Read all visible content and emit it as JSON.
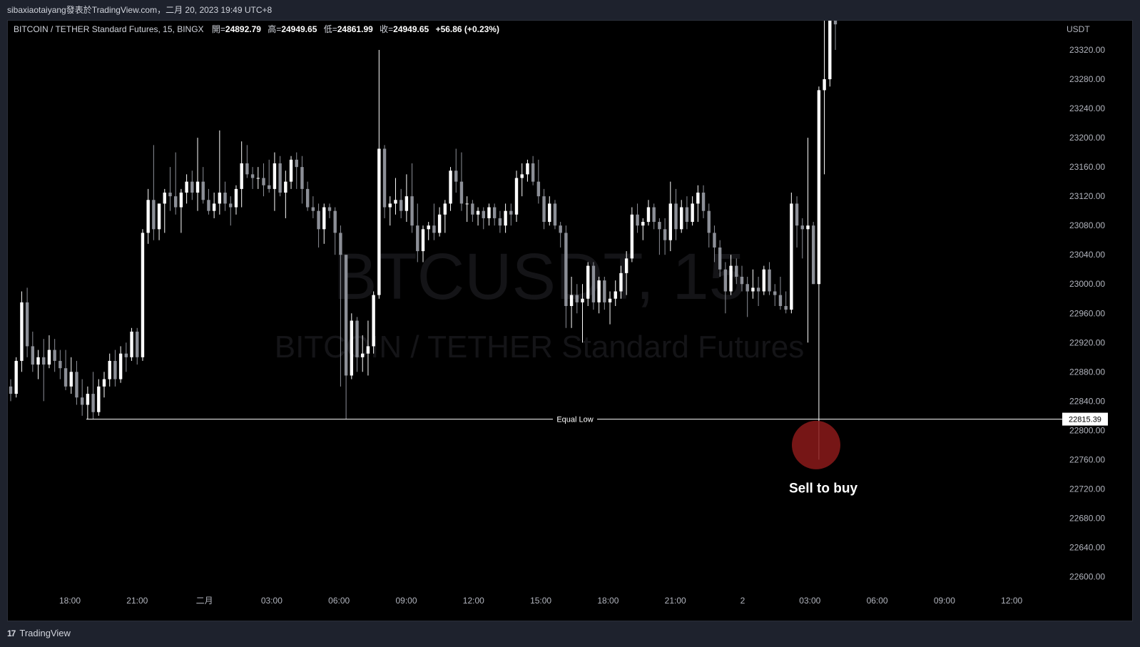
{
  "header": {
    "publish_line": "sibaxiaotaiyang發表於TradingView.com，二月 20, 2023 19:49 UTC+8"
  },
  "legend": {
    "symbol": "BITCOIN / TETHER Standard Futures, 15, BINGX",
    "open_label": "開=",
    "open": "24892.79",
    "high_label": "高=",
    "high": "24949.65",
    "low_label": "低=",
    "low": "24861.99",
    "close_label": "收=",
    "close": "24949.65",
    "change": "+56.86 (+0.23%)"
  },
  "watermark": {
    "ticker": "BTCUSDT, 15",
    "name": "BITCOIN / TETHER Standard Futures"
  },
  "footer": {
    "brand": "TradingView",
    "logo_icon": "tradingview-logo-icon"
  },
  "colors": {
    "bull": "#ffffff",
    "bear": "#8c8f97",
    "background": "#000000",
    "grid_text": "#b2b5be",
    "marker": "#8b1a1a"
  },
  "chart_data": {
    "type": "candlestick",
    "title": "BITCOIN / TETHER Standard Futures, 15, BINGX",
    "ylabel": "USDT",
    "ylim": [
      22580,
      23360
    ],
    "yticks": [
      23320,
      23280,
      23240,
      23200,
      23160,
      23120,
      23080,
      23040,
      23000,
      22960,
      22920,
      22880,
      22840,
      22800,
      22760,
      22720,
      22680,
      22640,
      22600
    ],
    "xtick_labels": [
      "18:00",
      "21:00",
      "二月",
      "03:00",
      "06:00",
      "09:00",
      "12:00",
      "15:00",
      "18:00",
      "21:00",
      "2",
      "03:00",
      "06:00",
      "09:00",
      "12:00"
    ],
    "candles": [
      {
        "o": 22860,
        "h": 22870,
        "l": 22840,
        "c": 22850
      },
      {
        "o": 22850,
        "h": 22900,
        "l": 22845,
        "c": 22895
      },
      {
        "o": 22895,
        "h": 22990,
        "l": 22880,
        "c": 22975
      },
      {
        "o": 22975,
        "h": 22995,
        "l": 22900,
        "c": 22915
      },
      {
        "o": 22915,
        "h": 22935,
        "l": 22880,
        "c": 22890
      },
      {
        "o": 22890,
        "h": 22910,
        "l": 22870,
        "c": 22900
      },
      {
        "o": 22900,
        "h": 22925,
        "l": 22840,
        "c": 22890
      },
      {
        "o": 22890,
        "h": 22930,
        "l": 22885,
        "c": 22910
      },
      {
        "o": 22910,
        "h": 22925,
        "l": 22880,
        "c": 22895
      },
      {
        "o": 22895,
        "h": 22910,
        "l": 22870,
        "c": 22885
      },
      {
        "o": 22885,
        "h": 22910,
        "l": 22855,
        "c": 22860
      },
      {
        "o": 22860,
        "h": 22900,
        "l": 22850,
        "c": 22880
      },
      {
        "o": 22880,
        "h": 22895,
        "l": 22835,
        "c": 22845
      },
      {
        "o": 22845,
        "h": 22870,
        "l": 22820,
        "c": 22835
      },
      {
        "o": 22835,
        "h": 22860,
        "l": 22815,
        "c": 22850
      },
      {
        "o": 22850,
        "h": 22880,
        "l": 22815,
        "c": 22825
      },
      {
        "o": 22825,
        "h": 22870,
        "l": 22820,
        "c": 22860
      },
      {
        "o": 22860,
        "h": 22880,
        "l": 22845,
        "c": 22870
      },
      {
        "o": 22870,
        "h": 22905,
        "l": 22860,
        "c": 22895
      },
      {
        "o": 22895,
        "h": 22910,
        "l": 22860,
        "c": 22870
      },
      {
        "o": 22870,
        "h": 22915,
        "l": 22865,
        "c": 22905
      },
      {
        "o": 22905,
        "h": 22920,
        "l": 22880,
        "c": 22900
      },
      {
        "o": 22900,
        "h": 22940,
        "l": 22895,
        "c": 22935
      },
      {
        "o": 22935,
        "h": 22940,
        "l": 22890,
        "c": 22900
      },
      {
        "o": 22900,
        "h": 23075,
        "l": 22895,
        "c": 23070
      },
      {
        "o": 23070,
        "h": 23130,
        "l": 23055,
        "c": 23115
      },
      {
        "o": 23115,
        "h": 23190,
        "l": 23060,
        "c": 23075
      },
      {
        "o": 23075,
        "h": 23110,
        "l": 23060,
        "c": 23110
      },
      {
        "o": 23110,
        "h": 23130,
        "l": 23070,
        "c": 23125
      },
      {
        "o": 23125,
        "h": 23160,
        "l": 23100,
        "c": 23120
      },
      {
        "o": 23120,
        "h": 23180,
        "l": 23095,
        "c": 23105
      },
      {
        "o": 23105,
        "h": 23130,
        "l": 23070,
        "c": 23125
      },
      {
        "o": 23125,
        "h": 23150,
        "l": 23110,
        "c": 23140
      },
      {
        "o": 23140,
        "h": 23155,
        "l": 23115,
        "c": 23125
      },
      {
        "o": 23125,
        "h": 23200,
        "l": 23100,
        "c": 23140
      },
      {
        "o": 23140,
        "h": 23160,
        "l": 23110,
        "c": 23115
      },
      {
        "o": 23115,
        "h": 23130,
        "l": 23095,
        "c": 23100
      },
      {
        "o": 23100,
        "h": 23125,
        "l": 23090,
        "c": 23110
      },
      {
        "o": 23110,
        "h": 23210,
        "l": 23095,
        "c": 23125
      },
      {
        "o": 23125,
        "h": 23140,
        "l": 23100,
        "c": 23110
      },
      {
        "o": 23110,
        "h": 23120,
        "l": 23080,
        "c": 23105
      },
      {
        "o": 23105,
        "h": 23135,
        "l": 23095,
        "c": 23130
      },
      {
        "o": 23130,
        "h": 23195,
        "l": 23105,
        "c": 23165
      },
      {
        "o": 23165,
        "h": 23190,
        "l": 23145,
        "c": 23150
      },
      {
        "o": 23150,
        "h": 23160,
        "l": 23130,
        "c": 23145
      },
      {
        "o": 23145,
        "h": 23160,
        "l": 23130,
        "c": 23145
      },
      {
        "o": 23145,
        "h": 23165,
        "l": 23120,
        "c": 23135
      },
      {
        "o": 23135,
        "h": 23170,
        "l": 23125,
        "c": 23130
      },
      {
        "o": 23130,
        "h": 23180,
        "l": 23100,
        "c": 23165
      },
      {
        "o": 23165,
        "h": 23175,
        "l": 23120,
        "c": 23125
      },
      {
        "o": 23125,
        "h": 23155,
        "l": 23090,
        "c": 23140
      },
      {
        "o": 23140,
        "h": 23175,
        "l": 23130,
        "c": 23170
      },
      {
        "o": 23170,
        "h": 23180,
        "l": 23130,
        "c": 23160
      },
      {
        "o": 23160,
        "h": 23175,
        "l": 23110,
        "c": 23130
      },
      {
        "o": 23130,
        "h": 23140,
        "l": 23100,
        "c": 23105
      },
      {
        "o": 23105,
        "h": 23120,
        "l": 23090,
        "c": 23100
      },
      {
        "o": 23100,
        "h": 23110,
        "l": 23050,
        "c": 23075
      },
      {
        "o": 23075,
        "h": 23110,
        "l": 23055,
        "c": 23105
      },
      {
        "o": 23105,
        "h": 23110,
        "l": 23090,
        "c": 23100
      },
      {
        "o": 23100,
        "h": 23105,
        "l": 23040,
        "c": 23070
      },
      {
        "o": 23070,
        "h": 23080,
        "l": 22860,
        "c": 23040
      },
      {
        "o": 23040,
        "h": 23040,
        "l": 22815,
        "c": 22875
      },
      {
        "o": 22875,
        "h": 22960,
        "l": 22870,
        "c": 22950
      },
      {
        "o": 22950,
        "h": 22955,
        "l": 22880,
        "c": 22900
      },
      {
        "o": 22900,
        "h": 22930,
        "l": 22880,
        "c": 22905
      },
      {
        "o": 22905,
        "h": 22950,
        "l": 22875,
        "c": 22915
      },
      {
        "o": 22915,
        "h": 22990,
        "l": 22905,
        "c": 22985
      },
      {
        "o": 22985,
        "h": 23320,
        "l": 22980,
        "c": 23185
      },
      {
        "o": 23185,
        "h": 23190,
        "l": 23090,
        "c": 23105
      },
      {
        "o": 23105,
        "h": 23120,
        "l": 23080,
        "c": 23110
      },
      {
        "o": 23110,
        "h": 23145,
        "l": 23095,
        "c": 23115
      },
      {
        "o": 23115,
        "h": 23130,
        "l": 23090,
        "c": 23100
      },
      {
        "o": 23100,
        "h": 23150,
        "l": 23085,
        "c": 23120
      },
      {
        "o": 23120,
        "h": 23165,
        "l": 23070,
        "c": 23080
      },
      {
        "o": 23080,
        "h": 23110,
        "l": 23030,
        "c": 23045
      },
      {
        "o": 23045,
        "h": 23080,
        "l": 23030,
        "c": 23075
      },
      {
        "o": 23075,
        "h": 23085,
        "l": 23060,
        "c": 23080
      },
      {
        "o": 23080,
        "h": 23110,
        "l": 23060,
        "c": 23070
      },
      {
        "o": 23070,
        "h": 23105,
        "l": 23065,
        "c": 23095
      },
      {
        "o": 23095,
        "h": 23115,
        "l": 23070,
        "c": 23110
      },
      {
        "o": 23110,
        "h": 23160,
        "l": 23100,
        "c": 23155
      },
      {
        "o": 23155,
        "h": 23185,
        "l": 23125,
        "c": 23140
      },
      {
        "o": 23140,
        "h": 23180,
        "l": 23100,
        "c": 23110
      },
      {
        "o": 23110,
        "h": 23120,
        "l": 23085,
        "c": 23110
      },
      {
        "o": 23110,
        "h": 23115,
        "l": 23085,
        "c": 23095
      },
      {
        "o": 23095,
        "h": 23105,
        "l": 23080,
        "c": 23100
      },
      {
        "o": 23100,
        "h": 23105,
        "l": 23075,
        "c": 23090
      },
      {
        "o": 23090,
        "h": 23110,
        "l": 23080,
        "c": 23105
      },
      {
        "o": 23105,
        "h": 23110,
        "l": 23080,
        "c": 23090
      },
      {
        "o": 23090,
        "h": 23100,
        "l": 23070,
        "c": 23080
      },
      {
        "o": 23080,
        "h": 23110,
        "l": 23070,
        "c": 23100
      },
      {
        "o": 23100,
        "h": 23110,
        "l": 23080,
        "c": 23095
      },
      {
        "o": 23095,
        "h": 23155,
        "l": 23085,
        "c": 23145
      },
      {
        "o": 23145,
        "h": 23165,
        "l": 23120,
        "c": 23150
      },
      {
        "o": 23150,
        "h": 23170,
        "l": 23140,
        "c": 23165
      },
      {
        "o": 23165,
        "h": 23175,
        "l": 23135,
        "c": 23140
      },
      {
        "o": 23140,
        "h": 23170,
        "l": 23110,
        "c": 23120
      },
      {
        "o": 23120,
        "h": 23130,
        "l": 23075,
        "c": 23085
      },
      {
        "o": 23085,
        "h": 23120,
        "l": 23080,
        "c": 23110
      },
      {
        "o": 23110,
        "h": 23115,
        "l": 23075,
        "c": 23080
      },
      {
        "o": 23080,
        "h": 23085,
        "l": 23050,
        "c": 23070
      },
      {
        "o": 23070,
        "h": 23080,
        "l": 22940,
        "c": 22970
      },
      {
        "o": 22970,
        "h": 23010,
        "l": 22940,
        "c": 22985
      },
      {
        "o": 22985,
        "h": 23000,
        "l": 22960,
        "c": 22975
      },
      {
        "o": 22975,
        "h": 23000,
        "l": 22920,
        "c": 22980
      },
      {
        "o": 22980,
        "h": 23030,
        "l": 22970,
        "c": 23025
      },
      {
        "o": 23025,
        "h": 23030,
        "l": 22965,
        "c": 22975
      },
      {
        "o": 22975,
        "h": 23010,
        "l": 22960,
        "c": 23005
      },
      {
        "o": 23005,
        "h": 23010,
        "l": 22965,
        "c": 22975
      },
      {
        "o": 22975,
        "h": 22990,
        "l": 22945,
        "c": 22980
      },
      {
        "o": 22980,
        "h": 23005,
        "l": 22970,
        "c": 22990
      },
      {
        "o": 22990,
        "h": 23025,
        "l": 22980,
        "c": 23015
      },
      {
        "o": 23015,
        "h": 23045,
        "l": 22985,
        "c": 23035
      },
      {
        "o": 23035,
        "h": 23105,
        "l": 23030,
        "c": 23095
      },
      {
        "o": 23095,
        "h": 23110,
        "l": 23070,
        "c": 23080
      },
      {
        "o": 23080,
        "h": 23090,
        "l": 23060,
        "c": 23085
      },
      {
        "o": 23085,
        "h": 23115,
        "l": 23080,
        "c": 23105
      },
      {
        "o": 23105,
        "h": 23110,
        "l": 23075,
        "c": 23085
      },
      {
        "o": 23085,
        "h": 23090,
        "l": 23040,
        "c": 23075
      },
      {
        "o": 23075,
        "h": 23090,
        "l": 23040,
        "c": 23060
      },
      {
        "o": 23060,
        "h": 23140,
        "l": 23045,
        "c": 23110
      },
      {
        "o": 23110,
        "h": 23130,
        "l": 23060,
        "c": 23075
      },
      {
        "o": 23075,
        "h": 23115,
        "l": 23070,
        "c": 23105
      },
      {
        "o": 23105,
        "h": 23120,
        "l": 23075,
        "c": 23085
      },
      {
        "o": 23085,
        "h": 23120,
        "l": 23080,
        "c": 23110
      },
      {
        "o": 23110,
        "h": 23135,
        "l": 23085,
        "c": 23125
      },
      {
        "o": 23125,
        "h": 23135,
        "l": 23090,
        "c": 23100
      },
      {
        "o": 23100,
        "h": 23110,
        "l": 23050,
        "c": 23070
      },
      {
        "o": 23070,
        "h": 23080,
        "l": 23030,
        "c": 23050
      },
      {
        "o": 23050,
        "h": 23060,
        "l": 23010,
        "c": 23020
      },
      {
        "o": 23020,
        "h": 23030,
        "l": 22960,
        "c": 22990
      },
      {
        "o": 22990,
        "h": 23040,
        "l": 22985,
        "c": 23025
      },
      {
        "o": 23025,
        "h": 23035,
        "l": 23000,
        "c": 23010
      },
      {
        "o": 23010,
        "h": 23025,
        "l": 22990,
        "c": 23000
      },
      {
        "o": 23000,
        "h": 23010,
        "l": 22955,
        "c": 22990
      },
      {
        "o": 22990,
        "h": 23020,
        "l": 22980,
        "c": 22995
      },
      {
        "o": 22995,
        "h": 23010,
        "l": 22970,
        "c": 22990
      },
      {
        "o": 22990,
        "h": 23025,
        "l": 22985,
        "c": 23020
      },
      {
        "o": 23020,
        "h": 23030,
        "l": 22985,
        "c": 22990
      },
      {
        "o": 22990,
        "h": 23000,
        "l": 22970,
        "c": 22985
      },
      {
        "o": 22985,
        "h": 23010,
        "l": 22965,
        "c": 22970
      },
      {
        "o": 22970,
        "h": 22990,
        "l": 22960,
        "c": 22965
      },
      {
        "o": 22965,
        "h": 23125,
        "l": 22960,
        "c": 23110
      },
      {
        "o": 23110,
        "h": 23120,
        "l": 23050,
        "c": 23080
      },
      {
        "o": 23080,
        "h": 23090,
        "l": 23035,
        "c": 23075
      },
      {
        "o": 23075,
        "h": 23200,
        "l": 22920,
        "c": 23080
      },
      {
        "o": 23080,
        "h": 23085,
        "l": 23000,
        "c": 23000
      },
      {
        "o": 23000,
        "h": 23270,
        "l": 22760,
        "c": 23265
      },
      {
        "o": 23265,
        "h": 23360,
        "l": 23150,
        "c": 23280
      },
      {
        "o": 23280,
        "h": 23360,
        "l": 23270,
        "c": 23360
      },
      {
        "o": 23360,
        "h": 23360,
        "l": 23320,
        "c": 23355
      }
    ],
    "annotations": [
      {
        "type": "hline",
        "y": 22815.39,
        "label": "Equal Low",
        "price_label": "22815.39"
      },
      {
        "type": "text",
        "label": "Sell to buy"
      }
    ],
    "grid": false,
    "legend_position": "top-left"
  }
}
